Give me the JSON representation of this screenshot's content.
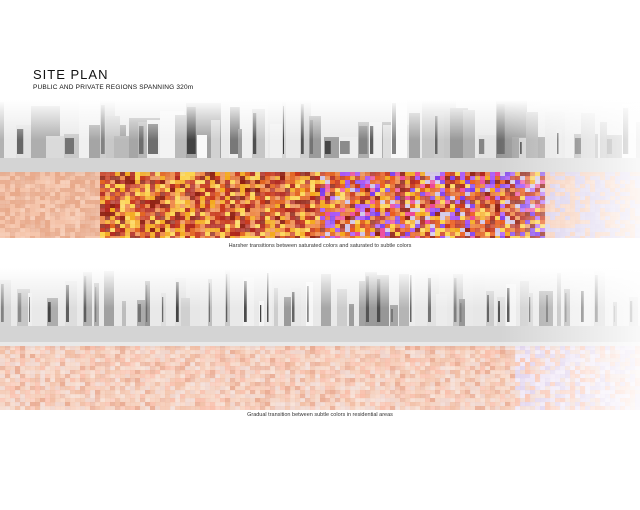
{
  "header": {
    "title": "SITE  PLAN",
    "subtitle": "PUBLIC AND PRIVATE REGIONS SPANNING 320m"
  },
  "plans": [
    {
      "caption": "Harsher transitions between saturated colors and saturated to subtle colors",
      "palette": [
        "#f4c1a6",
        "#e8a98a",
        "#ee8a4a",
        "#e2631f",
        "#c8371a",
        "#8f1f10",
        "#f4a81c",
        "#fcd34d",
        "#b0261b",
        "#ea5b1d",
        "#a855f7",
        "#7c3aed",
        "#ec4899",
        "#d1c6e8"
      ]
    },
    {
      "caption": "Gradual transition between subtle colors in residential areas",
      "palette": [
        "#f5c7b0",
        "#f0b89c",
        "#e8a58a",
        "#f3d0bf",
        "#f8b9a3",
        "#eecfc5",
        "#d9c9ea",
        "#e9ddf2"
      ]
    }
  ]
}
